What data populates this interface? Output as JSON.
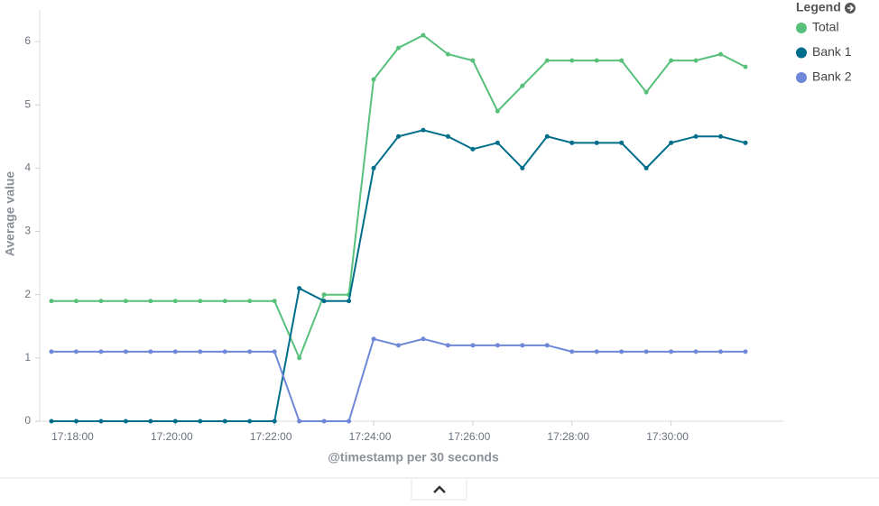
{
  "chart_data": {
    "type": "line",
    "x": [
      "17:17:30",
      "17:18:00",
      "17:18:30",
      "17:19:00",
      "17:19:30",
      "17:20:00",
      "17:20:30",
      "17:21:00",
      "17:21:30",
      "17:22:00",
      "17:22:30",
      "17:23:00",
      "17:23:30",
      "17:24:00",
      "17:24:30",
      "17:25:00",
      "17:25:30",
      "17:26:00",
      "17:26:30",
      "17:27:00",
      "17:27:30",
      "17:28:00",
      "17:28:30",
      "17:29:00",
      "17:29:30",
      "17:30:00",
      "17:30:30",
      "17:31:00",
      "17:31:30"
    ],
    "series": [
      {
        "name": "Total",
        "color": "#57c17b",
        "values": [
          1.9,
          1.9,
          1.9,
          1.9,
          1.9,
          1.9,
          1.9,
          1.9,
          1.9,
          1.9,
          1.0,
          2.0,
          2.0,
          5.4,
          5.9,
          6.1,
          5.8,
          5.7,
          4.9,
          5.3,
          5.7,
          5.7,
          5.7,
          5.7,
          5.2,
          5.7,
          5.7,
          5.8,
          5.6
        ]
      },
      {
        "name": "Bank 1",
        "color": "#006e8a",
        "values": [
          0,
          0,
          0,
          0,
          0,
          0,
          0,
          0,
          0,
          0,
          2.1,
          1.9,
          1.9,
          4.0,
          4.5,
          4.6,
          4.5,
          4.3,
          4.4,
          4.0,
          4.5,
          4.4,
          4.4,
          4.4,
          4.0,
          4.4,
          4.5,
          4.5,
          4.4
        ]
      },
      {
        "name": "Bank 2",
        "color": "#6f87d8",
        "values": [
          1.1,
          1.1,
          1.1,
          1.1,
          1.1,
          1.1,
          1.1,
          1.1,
          1.1,
          1.1,
          0,
          0,
          0,
          1.3,
          1.2,
          1.3,
          1.2,
          1.2,
          1.2,
          1.2,
          1.2,
          1.1,
          1.1,
          1.1,
          1.1,
          1.1,
          1.1,
          1.1,
          1.1
        ]
      }
    ],
    "ylim": [
      0,
      6.5
    ],
    "yticks": [
      0,
      1,
      2,
      3,
      4,
      5,
      6
    ],
    "xticks": [
      "17:18:00",
      "17:20:00",
      "17:22:00",
      "17:24:00",
      "17:26:00",
      "17:28:00",
      "17:30:00"
    ],
    "ylabel": "Average value",
    "xlabel": "@timestamp per 30 seconds",
    "legend_title": "Legend"
  }
}
